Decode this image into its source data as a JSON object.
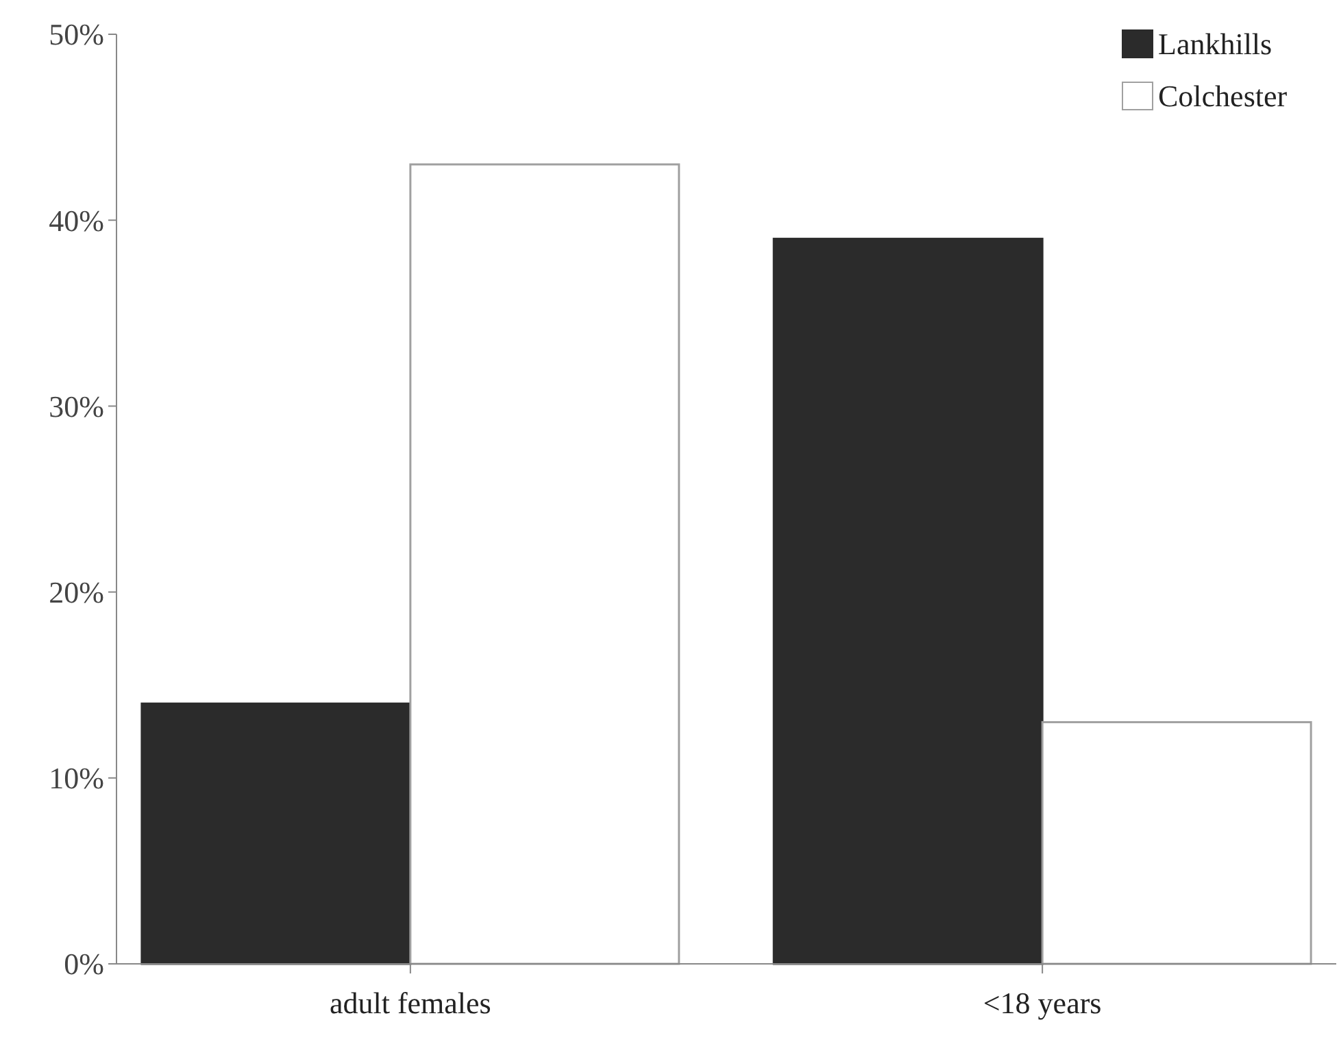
{
  "chart_data": {
    "type": "bar",
    "categories": [
      "adult females",
      "<18 years"
    ],
    "series": [
      {
        "name": "Lankhills",
        "color": "#2b2b2b",
        "values": [
          14,
          39
        ]
      },
      {
        "name": "Colchester",
        "color": "#ffffff",
        "values": [
          43,
          13
        ]
      }
    ],
    "ylim": [
      0,
      50
    ],
    "yticks": [
      {
        "value": 0,
        "label": "0%"
      },
      {
        "value": 10,
        "label": "10%"
      },
      {
        "value": 20,
        "label": "20%"
      },
      {
        "value": 30,
        "label": "30%"
      },
      {
        "value": 40,
        "label": "40%"
      },
      {
        "value": 50,
        "label": "50%"
      }
    ],
    "grid": false,
    "legend": "top right"
  }
}
